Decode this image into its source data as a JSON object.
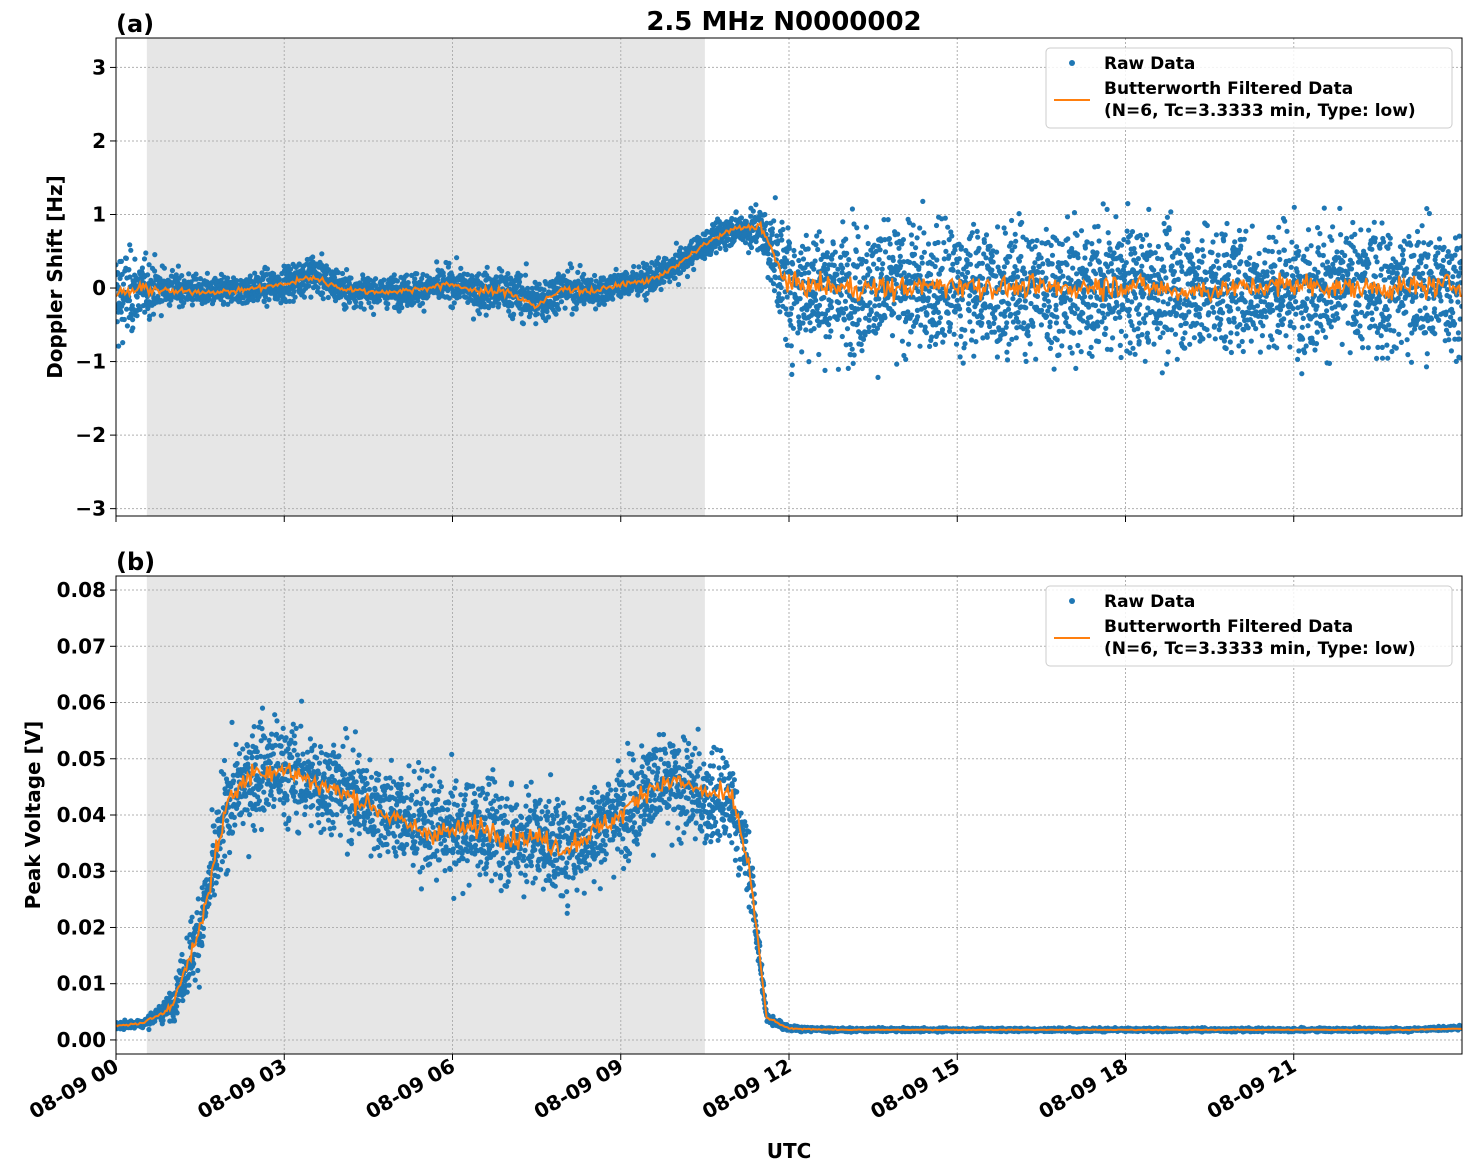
{
  "figure": {
    "title": "2.5 MHz N0000002",
    "xlabel": "UTC"
  },
  "colors": {
    "raw": "#1f77b4",
    "filtered": "#ff7f0e",
    "shade": "#e6e6e6",
    "grid": "#b0b0b0"
  },
  "chart_data": [
    {
      "type": "scatter",
      "panel_label": "(a)",
      "title": "2.5 MHz N0000002",
      "ylabel": "Doppler Shift [Hz]",
      "xlabel": "",
      "x_unit": "hours since 08-09 00 UTC",
      "xlim": [
        0,
        24
      ],
      "ylim": [
        -3.1,
        3.4
      ],
      "yticks": [
        -3,
        -2,
        -1,
        0,
        1,
        2,
        3
      ],
      "ytick_labels": [
        "−3",
        "−2",
        "−1",
        "0",
        "1",
        "2",
        "3"
      ],
      "xticks": [
        0,
        3,
        6,
        9,
        12,
        15,
        18,
        21
      ],
      "xtick_labels": [
        "08-09 00",
        "08-09 03",
        "08-09 06",
        "08-09 09",
        "08-09 12",
        "08-09 15",
        "08-09 18",
        "08-09 21"
      ],
      "grid": true,
      "legend_position": "top-right",
      "shaded_region": [
        0.55,
        10.5
      ],
      "series": [
        {
          "name": "Raw Data",
          "kind": "scatter",
          "x": [
            0,
            0.5,
            1,
            1.5,
            2,
            2.5,
            3,
            3.5,
            4,
            4.5,
            5,
            5.5,
            6,
            6.5,
            7,
            7.5,
            8,
            8.5,
            9,
            9.5,
            10,
            10.5,
            11,
            11.5,
            12,
            13,
            14,
            15,
            16,
            17,
            18,
            19,
            20,
            21,
            22,
            23,
            24
          ],
          "center": [
            -0.15,
            0,
            0,
            -0.05,
            -0.05,
            0,
            0.05,
            0.2,
            0,
            -0.05,
            -0.05,
            0,
            0.05,
            -0.05,
            -0.05,
            -0.2,
            0,
            -0.05,
            0.05,
            0.1,
            0.3,
            0.6,
            0.8,
            0.8,
            0,
            0,
            0,
            0,
            0,
            0,
            0,
            0,
            0,
            0,
            0,
            0,
            0
          ],
          "spread": [
            0.9,
            0.5,
            0.3,
            0.25,
            0.25,
            0.25,
            0.3,
            0.35,
            0.3,
            0.25,
            0.25,
            0.3,
            0.3,
            0.35,
            0.4,
            0.4,
            0.35,
            0.3,
            0.25,
            0.25,
            0.25,
            0.25,
            0.25,
            0.4,
            1.1,
            1.1,
            1.1,
            1.1,
            1.1,
            1.1,
            1.1,
            1.1,
            1.1,
            1.1,
            1.1,
            1.1,
            1.1
          ]
        },
        {
          "name": "Butterworth Filtered Data\n(N=6, Tc=3.3333 min, Type: low)",
          "kind": "line",
          "x": [
            0,
            0.5,
            1,
            1.5,
            2,
            2.5,
            3,
            3.5,
            4,
            4.5,
            5,
            5.5,
            6,
            6.5,
            7,
            7.5,
            8,
            8.5,
            9,
            9.5,
            10,
            10.5,
            11,
            11.5,
            11.8,
            12,
            13,
            14,
            15,
            16,
            17,
            18,
            19,
            20,
            21,
            22,
            23,
            24
          ],
          "y": [
            -0.1,
            0,
            -0.05,
            -0.05,
            -0.05,
            0,
            0.05,
            0.15,
            0,
            -0.05,
            -0.05,
            0,
            0.05,
            -0.05,
            -0.05,
            -0.25,
            0,
            -0.05,
            0.05,
            0.1,
            0.3,
            0.6,
            0.8,
            0.85,
            0.3,
            0.05,
            0,
            0,
            0.05,
            0,
            0,
            0.05,
            -0.05,
            0,
            0.05,
            0,
            0,
            0.05
          ],
          "noise": 0.22
        }
      ]
    },
    {
      "type": "scatter",
      "panel_label": "(b)",
      "title": "",
      "ylabel": "Peak Voltage [V]",
      "xlabel": "UTC",
      "x_unit": "hours since 08-09 00 UTC",
      "xlim": [
        0,
        24
      ],
      "ylim": [
        -0.0025,
        0.0825
      ],
      "yticks": [
        0.0,
        0.01,
        0.02,
        0.03,
        0.04,
        0.05,
        0.06,
        0.07,
        0.08
      ],
      "ytick_labels": [
        "0.00",
        "0.01",
        "0.02",
        "0.03",
        "0.04",
        "0.05",
        "0.06",
        "0.07",
        "0.08"
      ],
      "xticks": [
        0,
        3,
        6,
        9,
        12,
        15,
        18,
        21
      ],
      "xtick_labels": [
        "08-09 00",
        "08-09 03",
        "08-09 06",
        "08-09 09",
        "08-09 12",
        "08-09 15",
        "08-09 18",
        "08-09 21"
      ],
      "grid": true,
      "legend_position": "top-right",
      "shaded_region": [
        0.55,
        10.5
      ],
      "series": [
        {
          "name": "Raw Data",
          "kind": "scatter",
          "x": [
            0,
            0.5,
            1,
            1.5,
            2,
            2.5,
            3,
            3.5,
            4,
            4.5,
            5,
            5.5,
            6,
            6.5,
            7,
            7.5,
            8,
            8.5,
            9,
            9.5,
            10,
            10.5,
            11,
            11.3,
            11.6,
            12,
            13,
            14,
            15,
            16,
            17,
            18,
            19,
            20,
            21,
            22,
            23,
            24
          ],
          "center": [
            0.0025,
            0.003,
            0.006,
            0.02,
            0.042,
            0.048,
            0.048,
            0.046,
            0.045,
            0.042,
            0.04,
            0.038,
            0.037,
            0.038,
            0.036,
            0.036,
            0.034,
            0.037,
            0.041,
            0.045,
            0.045,
            0.043,
            0.042,
            0.03,
            0.004,
            0.002,
            0.0018,
            0.0018,
            0.0018,
            0.0018,
            0.0018,
            0.0018,
            0.0018,
            0.0018,
            0.0018,
            0.0018,
            0.0018,
            0.0022
          ],
          "spread": [
            0.0008,
            0.001,
            0.003,
            0.01,
            0.011,
            0.012,
            0.012,
            0.011,
            0.011,
            0.011,
            0.011,
            0.011,
            0.011,
            0.011,
            0.011,
            0.011,
            0.011,
            0.011,
            0.011,
            0.011,
            0.011,
            0.011,
            0.01,
            0.008,
            0.0012,
            0.0006,
            0.0004,
            0.0004,
            0.0004,
            0.0004,
            0.0004,
            0.0004,
            0.0004,
            0.0004,
            0.0004,
            0.0004,
            0.0004,
            0.0005
          ]
        },
        {
          "name": "Butterworth Filtered Data\n(N=6, Tc=3.3333 min, Type: low)",
          "kind": "line",
          "x": [
            0,
            0.5,
            1,
            1.5,
            2,
            2.5,
            3,
            3.5,
            4,
            4.5,
            5,
            5.5,
            6,
            6.5,
            7,
            7.5,
            8,
            8.5,
            9,
            9.5,
            10,
            10.5,
            11,
            11.3,
            11.6,
            12,
            13,
            14,
            15,
            16,
            17,
            18,
            19,
            20,
            21,
            22,
            23,
            24
          ],
          "y": [
            0.0025,
            0.003,
            0.006,
            0.02,
            0.043,
            0.048,
            0.048,
            0.046,
            0.044,
            0.042,
            0.039,
            0.037,
            0.037,
            0.038,
            0.036,
            0.036,
            0.034,
            0.037,
            0.04,
            0.045,
            0.046,
            0.044,
            0.043,
            0.03,
            0.004,
            0.002,
            0.0018,
            0.0018,
            0.0018,
            0.0018,
            0.0018,
            0.0018,
            0.0018,
            0.0018,
            0.0018,
            0.0018,
            0.0018,
            0.002
          ],
          "noise": 0.003
        }
      ]
    }
  ]
}
